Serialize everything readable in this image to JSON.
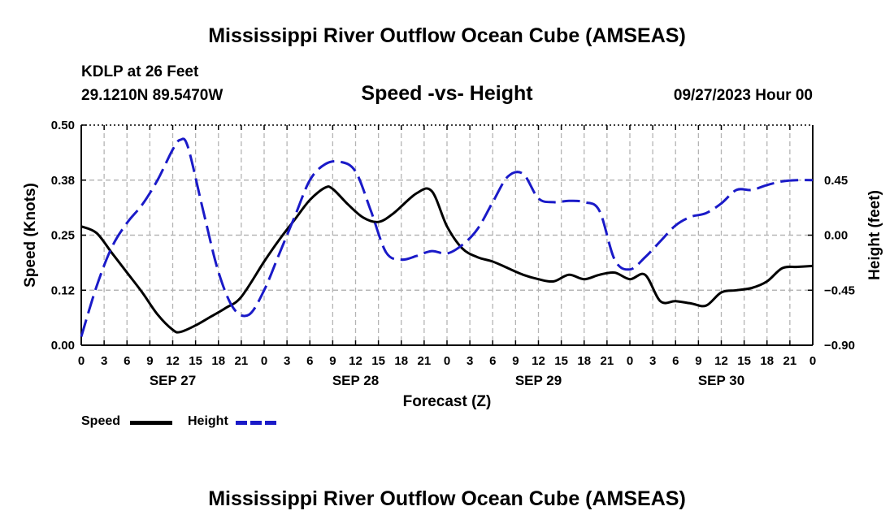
{
  "page_title": "Mississippi River Outflow Ocean Cube (AMSEAS)",
  "station_line": "KDLP at 26 Feet",
  "location_line": "29.1210N  89.5470W",
  "datetime_line": "09/27/2023 Hour 00",
  "footer_title": "Mississippi River Outflow Ocean Cube (AMSEAS)",
  "legend": {
    "speed_label": "Speed",
    "height_label": "Height"
  },
  "colors": {
    "speed": "#000000",
    "height": "#1a1ac8",
    "grid": "#b4b4b4"
  },
  "chart_data": {
    "type": "line",
    "title": "Speed -vs- Height",
    "xlabel": "Forecast (Z)",
    "ylabel": "Speed (Knots)",
    "y2label": "Height (feet)",
    "xlim": [
      0,
      96
    ],
    "ylim": [
      0,
      0.5
    ],
    "y2lim": [
      -0.9,
      0.9
    ],
    "x_ticks": [
      0,
      3,
      6,
      9,
      12,
      15,
      18,
      21,
      24,
      27,
      30,
      33,
      36,
      39,
      42,
      45,
      48,
      51,
      54,
      57,
      60,
      63,
      66,
      69,
      72,
      75,
      78,
      81,
      84,
      87,
      90,
      93,
      96
    ],
    "x_tick_labels": [
      "0",
      "3",
      "6",
      "9",
      "12",
      "15",
      "18",
      "21",
      "0",
      "3",
      "6",
      "9",
      "12",
      "15",
      "18",
      "21",
      "0",
      "3",
      "6",
      "9",
      "12",
      "15",
      "18",
      "21",
      "0",
      "3",
      "6",
      "9",
      "12",
      "15",
      "18",
      "21",
      "0"
    ],
    "day_labels": [
      {
        "x": 12,
        "label": "SEP 27"
      },
      {
        "x": 36,
        "label": "SEP 28"
      },
      {
        "x": 60,
        "label": "SEP 29"
      },
      {
        "x": 84,
        "label": "SEP 30"
      }
    ],
    "y_ticks": [
      0.0,
      0.125,
      0.25,
      0.375,
      0.5
    ],
    "y_tick_labels": [
      "0.00",
      "0.12",
      "0.25",
      "0.38",
      "0.50"
    ],
    "y2_ticks": [
      -0.9,
      -0.45,
      0.0,
      0.45
    ],
    "y2_tick_labels": [
      "−0.90",
      "−0.45",
      "0.00",
      "0.45"
    ],
    "series": [
      {
        "name": "Speed",
        "axis": "left",
        "style": "solid",
        "x": [
          0,
          2,
          4,
          6,
          8,
          10,
          12,
          13,
          15,
          17,
          19,
          21,
          24,
          26,
          28,
          30,
          32,
          33,
          35,
          37,
          39,
          41,
          44,
          46,
          48,
          50,
          52,
          54,
          56,
          58,
          60,
          62,
          64,
          66,
          68,
          70,
          72,
          74,
          76,
          78,
          80,
          82,
          84,
          86,
          88,
          90,
          92,
          94,
          96
        ],
        "values": [
          0.27,
          0.255,
          0.21,
          0.165,
          0.12,
          0.07,
          0.035,
          0.03,
          0.045,
          0.065,
          0.085,
          0.11,
          0.19,
          0.24,
          0.285,
          0.33,
          0.358,
          0.355,
          0.32,
          0.29,
          0.28,
          0.3,
          0.345,
          0.35,
          0.27,
          0.22,
          0.2,
          0.19,
          0.175,
          0.16,
          0.15,
          0.145,
          0.16,
          0.15,
          0.16,
          0.165,
          0.15,
          0.16,
          0.1,
          0.1,
          0.095,
          0.09,
          0.12,
          0.125,
          0.13,
          0.145,
          0.175,
          0.178,
          0.18
        ]
      },
      {
        "name": "Height",
        "axis": "right",
        "style": "dashed",
        "x": [
          0,
          2,
          4,
          6,
          8,
          10,
          12,
          13,
          14,
          16,
          18,
          20,
          22,
          24,
          26,
          28,
          30,
          32,
          34,
          36,
          38,
          40,
          42,
          44,
          46,
          48,
          50,
          52,
          54,
          56,
          58,
          60,
          62,
          64,
          66,
          68,
          70,
          72,
          74,
          76,
          78,
          80,
          82,
          84,
          86,
          88,
          90,
          92,
          94,
          96
        ],
        "values": [
          -0.83,
          -0.42,
          -0.1,
          0.1,
          0.25,
          0.45,
          0.7,
          0.78,
          0.72,
          0.2,
          -0.3,
          -0.6,
          -0.65,
          -0.45,
          -0.15,
          0.15,
          0.45,
          0.58,
          0.6,
          0.52,
          0.2,
          -0.14,
          -0.2,
          -0.17,
          -0.13,
          -0.15,
          -0.08,
          0.05,
          0.27,
          0.48,
          0.5,
          0.3,
          0.27,
          0.28,
          0.27,
          0.2,
          -0.2,
          -0.28,
          -0.18,
          -0.05,
          0.08,
          0.15,
          0.18,
          0.26,
          0.37,
          0.37,
          0.41,
          0.44,
          0.45,
          0.45
        ]
      }
    ]
  }
}
